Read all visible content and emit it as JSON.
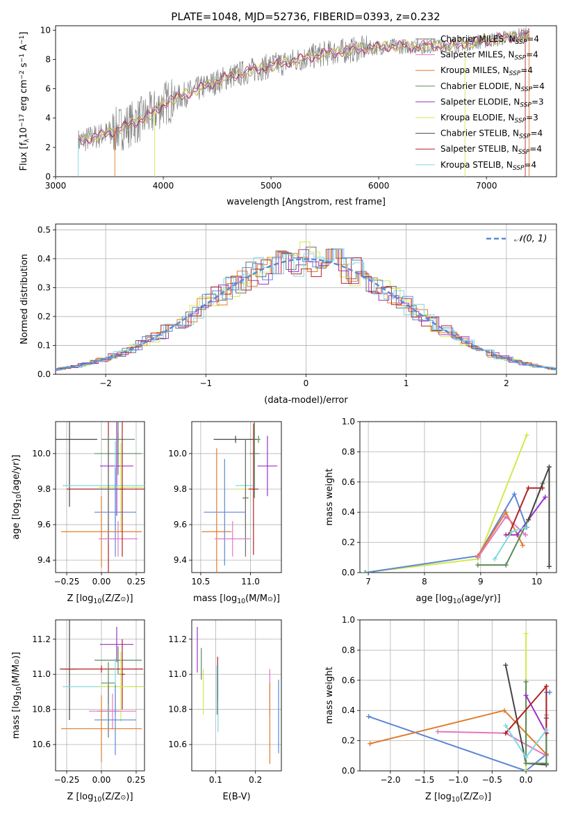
{
  "title": "PLATE=1048, MJD=52736, FIBERID=0393, z=0.232",
  "colors": {
    "miles_chabrier": "#6a6a6a",
    "miles_salpeter": "#e377c2",
    "miles_kroupa": "#e07b2c",
    "elodie_chabrier": "#5a8a5a",
    "elodie_salpeter": "#9b30c8",
    "elodie_kroupa": "#d4e84a",
    "stelib_chabrier": "#444444",
    "stelib_salpeter": "#b22222",
    "stelib_kroupa": "#7fd8e0",
    "blue": "#5b87d6",
    "green": "#70b060",
    "data": "#808080"
  },
  "chart_data": [
    {
      "type": "line",
      "id": "spectrum",
      "xlabel": "wavelength [Angstrom, rest frame]",
      "ylabel": "Flux [f",
      "ylabel_parts": {
        "lambda": "λ",
        "ten": "10",
        "exp": "−17",
        "units": " erg cm",
        "e2": "−2",
        "s": " s",
        "e1": "−1",
        "A": " A",
        "e3": "−1",
        "close": "]"
      },
      "xlim": [
        3000,
        7650
      ],
      "ylim": [
        0,
        10.3
      ],
      "xticks": [
        3000,
        4000,
        5000,
        6000,
        7000
      ],
      "yticks": [
        0,
        2,
        4,
        6,
        8,
        10
      ],
      "continuum": {
        "x": [
          3210,
          3500,
          3700,
          3900,
          4000,
          4300,
          4600,
          4900,
          5200,
          5500,
          5800,
          6100,
          6400,
          6700,
          7000,
          7300,
          7400
        ],
        "y": [
          2.4,
          3.0,
          3.6,
          4.3,
          5.0,
          5.9,
          6.8,
          7.4,
          7.9,
          8.4,
          8.7,
          8.9,
          8.9,
          9.0,
          9.3,
          9.6,
          9.7
        ]
      },
      "legend": [
        {
          "label": "Chabrier MILES, N",
          "sub": "SSP",
          "tail": "=4",
          "color": "miles_chabrier"
        },
        {
          "label": "Salpeter MILES, N",
          "sub": "SSP",
          "tail": "=4",
          "color": "miles_salpeter"
        },
        {
          "label": "Kroupa MILES, N",
          "sub": "SSP",
          "tail": "=4",
          "color": "miles_kroupa"
        },
        {
          "label": "Chabrier ELODIE, N",
          "sub": "SSP",
          "tail": "=4",
          "color": "elodie_chabrier"
        },
        {
          "label": "Salpeter ELODIE, N",
          "sub": "SSP",
          "tail": "=3",
          "color": "elodie_salpeter"
        },
        {
          "label": "Kroupa ELODIE, N",
          "sub": "SSP",
          "tail": "=3",
          "color": "elodie_kroupa"
        },
        {
          "label": "Chabrier STELIB, N",
          "sub": "SSP",
          "tail": "=4",
          "color": "stelib_chabrier"
        },
        {
          "label": "Salpeter STELIB, N",
          "sub": "SSP",
          "tail": "=4",
          "color": "stelib_salpeter"
        },
        {
          "label": "Kroupa STELIB, N",
          "sub": "SSP",
          "tail": "=4",
          "color": "stelib_kroupa"
        }
      ]
    },
    {
      "type": "histogram",
      "id": "residuals",
      "xlabel": "(data-model)/error",
      "ylabel": "Normed distribution",
      "xlim": [
        -2.5,
        2.5
      ],
      "ylim": [
        0,
        0.52
      ],
      "xticks": [
        -2,
        -1,
        0,
        1,
        2
      ],
      "yticks": [
        0,
        0.1,
        0.2,
        0.3,
        0.4,
        0.5
      ],
      "bin_width": 0.1,
      "gaussian_label": "N(0,1)",
      "series": [
        {
          "color": "miles_chabrier",
          "offset": 0
        },
        {
          "color": "miles_kroupa",
          "offset": 1
        },
        {
          "color": "elodie_salpeter",
          "offset": 2
        },
        {
          "color": "elodie_kroupa",
          "offset": 3
        },
        {
          "color": "stelib_salpeter",
          "offset": 4
        },
        {
          "color": "blue",
          "offset": 5
        },
        {
          "color": "stelib_kroupa",
          "offset": 6
        }
      ]
    },
    {
      "type": "errorbar",
      "id": "age_vs_Z",
      "xlabel_parts": [
        "Z [log",
        "10",
        "(Z/Z",
        "⊙",
        ")]"
      ],
      "ylabel_parts": [
        "age  [log",
        "10",
        "(age/yr)]"
      ],
      "xlim": [
        -0.33,
        0.31
      ],
      "ylim": [
        9.33,
        10.18
      ],
      "xticks": [
        -0.25,
        0.0,
        0.25
      ],
      "xticklabels": [
        "−0.25",
        "0.00",
        "0.25"
      ],
      "yticks": [
        9.4,
        9.6,
        9.8,
        10.0
      ],
      "points": [
        {
          "x": -0.23,
          "y": 10.08,
          "xe": 0.2,
          "ye": 0.38,
          "color": "stelib_chabrier"
        },
        {
          "x": 0.12,
          "y": 10.08,
          "xe": 0.12,
          "ye": 0.14,
          "color": "elodie_chabrier"
        },
        {
          "x": 0.12,
          "y": 10.0,
          "xe": 0.17,
          "ye": 0.12,
          "color": "elodie_chabrier"
        },
        {
          "x": 0.11,
          "y": 9.93,
          "xe": 0.12,
          "ye": 0.28,
          "color": "elodie_salpeter"
        },
        {
          "x": 0.1,
          "y": 9.82,
          "xe": 0.38,
          "ye": 0.25,
          "color": "stelib_kroupa"
        },
        {
          "x": 0.14,
          "y": 9.81,
          "xe": 0.16,
          "ye": 0.25,
          "color": "elodie_kroupa"
        },
        {
          "x": 0.05,
          "y": 9.8,
          "xe": 0.3,
          "ye": 0.5,
          "color": "stelib_salpeter"
        },
        {
          "x": 0.05,
          "y": 9.8,
          "xe": 0.08,
          "ye": 0.3,
          "color": "miles_chabrier"
        },
        {
          "x": 0.1,
          "y": 9.67,
          "xe": 0.15,
          "ye": 0.25,
          "color": "blue"
        },
        {
          "x": 0.0,
          "y": 9.56,
          "xe": 0.29,
          "ye": 0.2,
          "color": "miles_kroupa"
        },
        {
          "x": 0.12,
          "y": 9.52,
          "xe": 0.14,
          "ye": 0.1,
          "color": "miles_salpeter"
        },
        {
          "x": 0.15,
          "y": 9.8,
          "xe": 0.02,
          "ye": 0.38,
          "color": "stelib_salpeter"
        }
      ]
    },
    {
      "type": "errorbar",
      "id": "age_vs_mass",
      "xlabel_parts": [
        "mass [log",
        "10",
        "(M/M",
        "⊙",
        ")]"
      ],
      "xlim": [
        10.41,
        11.31
      ],
      "ylim": [
        9.33,
        10.18
      ],
      "xticks": [
        10.5,
        11.0
      ],
      "xticklabels": [
        "10.5",
        "11.0"
      ],
      "yticks": [
        9.4,
        9.6,
        9.8,
        10.0
      ],
      "points": [
        {
          "x": 10.85,
          "y": 10.08,
          "xe": 0.22,
          "ye": 0.02,
          "color": "stelib_chabrier"
        },
        {
          "x": 11.08,
          "y": 10.08,
          "xe": 0.02,
          "ye": 0.02,
          "color": "elodie_chabrier"
        },
        {
          "x": 11.04,
          "y": 10.0,
          "xe": 0.05,
          "ye": 0.25,
          "color": "elodie_chabrier"
        },
        {
          "x": 11.17,
          "y": 9.93,
          "xe": 0.1,
          "ye": 0.17,
          "color": "elodie_salpeter"
        },
        {
          "x": 10.95,
          "y": 9.82,
          "xe": 0.1,
          "ye": 0.25,
          "color": "stelib_kroupa"
        },
        {
          "x": 10.95,
          "y": 9.8,
          "xe": 0.1,
          "ye": 0.25,
          "color": "elodie_kroupa"
        },
        {
          "x": 11.03,
          "y": 9.8,
          "xe": 0.05,
          "ye": 0.37,
          "color": "stelib_salpeter"
        },
        {
          "x": 10.95,
          "y": 9.75,
          "xe": 0.03,
          "ye": 0.33,
          "color": "miles_chabrier"
        },
        {
          "x": 10.74,
          "y": 9.67,
          "xe": 0.21,
          "ye": 0.3,
          "color": "blue"
        },
        {
          "x": 10.66,
          "y": 9.56,
          "xe": 0.15,
          "ye": 0.47,
          "color": "miles_kroupa"
        },
        {
          "x": 10.82,
          "y": 9.52,
          "xe": 0.18,
          "ye": 0.1,
          "color": "miles_salpeter"
        }
      ]
    },
    {
      "type": "line",
      "id": "weight_vs_age",
      "xlabel_parts": [
        "age  [log",
        "10",
        "(age/yr)]"
      ],
      "ylabel": "mass weight",
      "xlim": [
        6.85,
        10.35
      ],
      "ylim": [
        0,
        1.0
      ],
      "xticks": [
        7,
        8,
        9,
        10
      ],
      "yticks": [
        0.0,
        0.2,
        0.4,
        0.6,
        0.8,
        1.0
      ],
      "series": [
        {
          "color": "elodie_kroupa",
          "x": [
            6.93,
            8.95,
            9.82
          ],
          "y": [
            0.0,
            0.09,
            0.91
          ]
        },
        {
          "color": "blue",
          "x": [
            6.95,
            8.95,
            9.6,
            9.82
          ],
          "y": [
            0.0,
            0.11,
            0.52,
            0.3
          ]
        },
        {
          "color": "miles_kroupa",
          "x": [
            8.95,
            9.45,
            9.75
          ],
          "y": [
            0.11,
            0.4,
            0.18
          ]
        },
        {
          "color": "miles_salpeter",
          "x": [
            8.95,
            9.45,
            9.8
          ],
          "y": [
            0.1,
            0.37,
            0.25
          ]
        },
        {
          "color": "elodie_salpeter",
          "x": [
            9.45,
            9.65,
            10.15
          ],
          "y": [
            0.25,
            0.25,
            0.5
          ]
        },
        {
          "color": "stelib_salpeter",
          "x": [
            9.5,
            9.85,
            10.1
          ],
          "y": [
            0.25,
            0.56,
            0.56
          ]
        },
        {
          "color": "elodie_chabrier",
          "x": [
            8.95,
            9.45,
            9.85,
            10.1
          ],
          "y": [
            0.05,
            0.05,
            0.35,
            0.59
          ]
        },
        {
          "color": "stelib_chabrier",
          "x": [
            9.85,
            10.22,
            10.22
          ],
          "y": [
            0.35,
            0.7,
            0.04
          ]
        },
        {
          "color": "stelib_kroupa",
          "x": [
            9.25,
            9.55,
            9.8
          ],
          "y": [
            0.09,
            0.27,
            0.3
          ]
        }
      ]
    },
    {
      "type": "errorbar",
      "id": "mass_vs_Z",
      "xlabel_parts": [
        "Z [log",
        "10",
        "(Z/Z",
        "⊙",
        ")]"
      ],
      "ylabel_parts": [
        "mass [log",
        "10",
        "(M/M",
        "⊙",
        ")]"
      ],
      "xlim": [
        -0.33,
        0.31
      ],
      "ylim": [
        10.45,
        11.31
      ],
      "xticks": [
        -0.25,
        0.0,
        0.25
      ],
      "xticklabels": [
        "−0.25",
        "0.00",
        "0.25"
      ],
      "yticks": [
        10.6,
        10.8,
        11.0,
        11.2
      ],
      "points": [
        {
          "x": 0.11,
          "y": 11.17,
          "xe": 0.12,
          "ye": 0.1,
          "color": "elodie_salpeter"
        },
        {
          "x": 0.12,
          "y": 11.08,
          "xe": 0.17,
          "ye": 0.08,
          "color": "elodie_chabrier"
        },
        {
          "x": -0.23,
          "y": 11.03,
          "xe": 0.05,
          "ye": 0.29,
          "color": "stelib_chabrier"
        },
        {
          "x": 0.0,
          "y": 11.03,
          "xe": 0.3,
          "ye": 0.02,
          "color": "stelib_salpeter"
        },
        {
          "x": 0.15,
          "y": 11.0,
          "xe": 0.02,
          "ye": 0.2,
          "color": "stelib_salpeter"
        },
        {
          "x": 0.05,
          "y": 10.95,
          "xe": 0.05,
          "ye": 0.12,
          "color": "elodie_chabrier"
        },
        {
          "x": 0.1,
          "y": 10.93,
          "xe": 0.38,
          "ye": 0.16,
          "color": "stelib_kroupa"
        },
        {
          "x": 0.14,
          "y": 10.93,
          "xe": 0.16,
          "ye": 0.2,
          "color": "elodie_kroupa"
        },
        {
          "x": 0.05,
          "y": 10.79,
          "xe": 0.08,
          "ye": 0.15,
          "color": "miles_chabrier"
        },
        {
          "x": 0.08,
          "y": 10.79,
          "xe": 0.17,
          "ye": 0.1,
          "color": "miles_salpeter"
        },
        {
          "x": 0.1,
          "y": 10.74,
          "xe": 0.15,
          "ye": 0.2,
          "color": "blue"
        },
        {
          "x": 0.0,
          "y": 10.69,
          "xe": 0.29,
          "ye": 0.19,
          "color": "miles_kroupa"
        }
      ]
    },
    {
      "type": "errorbar",
      "id": "mass_vs_ebv",
      "xlabel": "E(B-V)",
      "xlim": [
        0.04,
        0.265
      ],
      "ylim": [
        10.45,
        11.31
      ],
      "xticks": [
        0.1,
        0.2
      ],
      "xticklabels": [
        "0.1",
        "0.2"
      ],
      "yticks": [
        10.6,
        10.8,
        11.0,
        11.2
      ],
      "points": [
        {
          "x": 0.054,
          "y": 11.14,
          "xe": 0,
          "ye": 0.13,
          "color": "elodie_salpeter"
        },
        {
          "x": 0.064,
          "y": 11.06,
          "xe": 0,
          "ye": 0.09,
          "color": "elodie_chabrier"
        },
        {
          "x": 0.069,
          "y": 10.9,
          "xe": 0,
          "ye": 0.13,
          "color": "elodie_kroupa"
        },
        {
          "x": 0.105,
          "y": 10.98,
          "xe": 0,
          "ye": 0.12,
          "color": "stelib_salpeter"
        },
        {
          "x": 0.104,
          "y": 10.91,
          "xe": 0,
          "ye": 0.14,
          "color": "miles_chabrier"
        },
        {
          "x": 0.106,
          "y": 10.86,
          "xe": 0,
          "ye": 0.19,
          "color": "stelib_kroupa"
        },
        {
          "x": 0.236,
          "y": 10.9,
          "xe": 0,
          "ye": 0.13,
          "color": "miles_salpeter"
        },
        {
          "x": 0.236,
          "y": 10.72,
          "xe": 0,
          "ye": 0.23,
          "color": "miles_kroupa"
        },
        {
          "x": 0.258,
          "y": 10.76,
          "xe": 0,
          "ye": 0.21,
          "color": "blue"
        }
      ]
    },
    {
      "type": "line",
      "id": "weight_vs_Z",
      "xlabel_parts": [
        "Z [log",
        "10",
        "(Z/Z",
        "⊙",
        ")]"
      ],
      "ylabel": "mass weight",
      "xlim": [
        -2.45,
        0.45
      ],
      "ylim": [
        0,
        1.0
      ],
      "xticks": [
        -2.0,
        -1.5,
        -1.0,
        -0.5,
        0.0
      ],
      "xticklabels": [
        "−2.0",
        "−1.5",
        "−1.0",
        "−0.5",
        "0.0"
      ],
      "yticks": [
        0.0,
        0.2,
        0.4,
        0.6,
        0.8,
        1.0
      ],
      "series": [
        {
          "color": "blue",
          "x": [
            -2.32,
            0.0,
            0.3,
            0.3,
            0.35
          ],
          "y": [
            0.36,
            0.0,
            0.11,
            0.52,
            0.52
          ]
        },
        {
          "color": "miles_kroupa",
          "x": [
            -2.3,
            -0.32,
            0.3,
            0.3
          ],
          "y": [
            0.18,
            0.4,
            0.11,
            0.11
          ]
        },
        {
          "color": "miles_salpeter",
          "x": [
            -1.3,
            -0.3,
            0.3,
            0.3
          ],
          "y": [
            0.26,
            0.25,
            0.1,
            0.37
          ]
        },
        {
          "color": "stelib_chabrier",
          "x": [
            -0.3,
            0.0,
            0.3,
            0.3
          ],
          "y": [
            0.7,
            0.05,
            0.04,
            0.35
          ]
        },
        {
          "color": "elodie_kroupa",
          "x": [
            0.0,
            0.0,
            0.0
          ],
          "y": [
            0.91,
            0.09,
            0.0
          ]
        },
        {
          "color": "elodie_chabrier",
          "x": [
            0.0,
            0.0,
            0.3,
            0.3
          ],
          "y": [
            0.59,
            0.05,
            0.05,
            0.35
          ]
        },
        {
          "color": "elodie_salpeter",
          "x": [
            0.0,
            0.3,
            0.3
          ],
          "y": [
            0.5,
            0.25,
            0.25
          ]
        },
        {
          "color": "stelib_salpeter",
          "x": [
            -0.3,
            0.3,
            0.3
          ],
          "y": [
            0.25,
            0.56,
            0.25
          ]
        },
        {
          "color": "stelib_kroupa",
          "x": [
            -0.3,
            0.0,
            0.3
          ],
          "y": [
            0.3,
            0.09,
            0.27
          ]
        }
      ]
    }
  ]
}
